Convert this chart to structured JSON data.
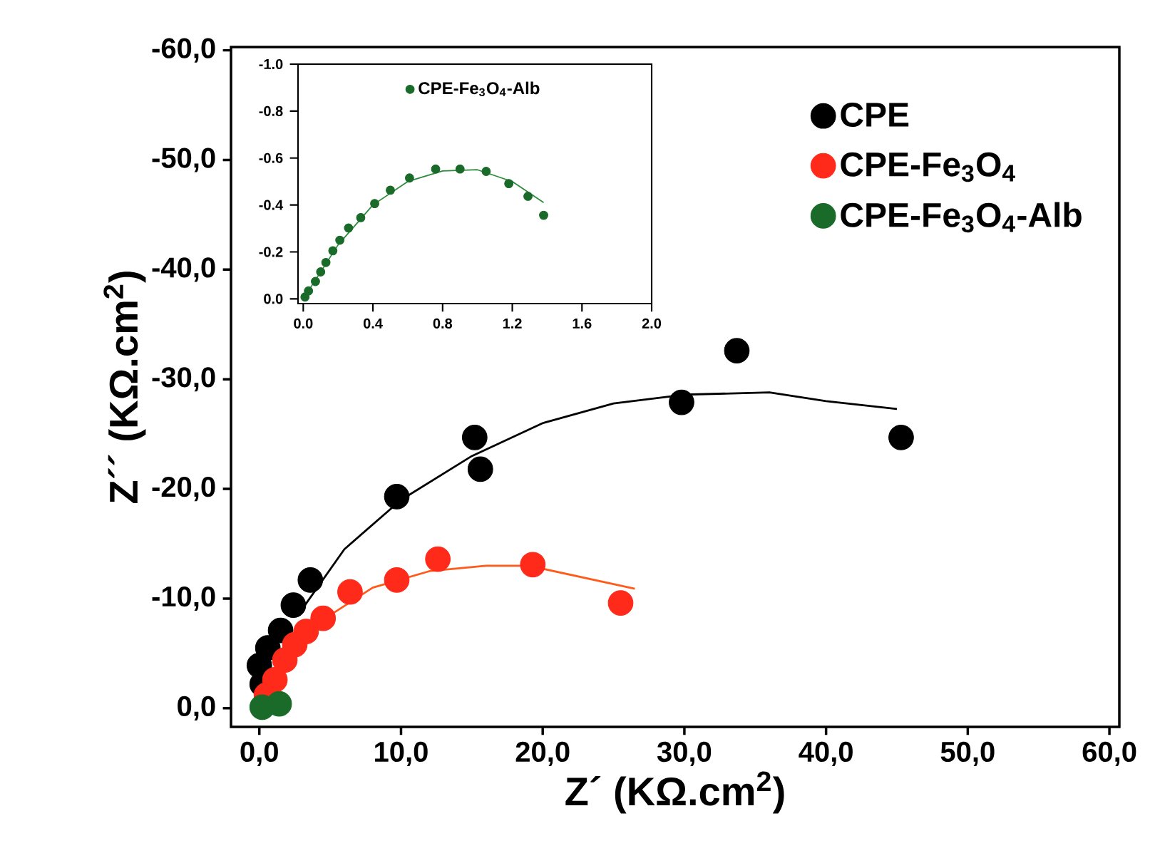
{
  "chart_data": [
    {
      "type": "scatter",
      "xlabel": "Z´ (KΩ.cm$^{2}$)",
      "ylabel": "Z´´ (KΩ.cm$^{2}$)",
      "legend": "top right",
      "xlim": [
        -2,
        60.7
      ],
      "ylim": [
        1.7,
        -60.3
      ],
      "xticks": [
        {
          "value": 0,
          "label": "0,0"
        },
        {
          "value": 10,
          "label": "10,0"
        },
        {
          "value": 20,
          "label": "20,0"
        },
        {
          "value": 30,
          "label": "30,0"
        },
        {
          "value": 40,
          "label": "40,0"
        },
        {
          "value": 50,
          "label": "50,0"
        },
        {
          "value": 60,
          "label": "60,0"
        }
      ],
      "yticks": [
        {
          "value": 0,
          "label": "0,0"
        },
        {
          "value": -10,
          "label": "-10,0"
        },
        {
          "value": -20,
          "label": "-20,0"
        },
        {
          "value": -30,
          "label": "-30,0"
        },
        {
          "value": -40,
          "label": "-40,0"
        },
        {
          "value": -50,
          "label": "-50,0"
        },
        {
          "value": -60,
          "label": "-60,0"
        }
      ],
      "series": [
        {
          "name": "CPE",
          "marker": "circle",
          "color": "#000000",
          "x": [
            0.2,
            0.0,
            0.6,
            1.5,
            2.4,
            3.6,
            9.7,
            15.2,
            15.6,
            29.8,
            33.7,
            45.3
          ],
          "values": [
            -2.2,
            -3.9,
            -5.5,
            -7.1,
            -9.4,
            -11.7,
            -19.3,
            -24.7,
            -21.8,
            -27.9,
            -32.6,
            -24.7
          ]
        },
        {
          "name": "CPE-Fe$_{3}$O$_{4}$",
          "marker": "circle",
          "color": "#ff2a1a",
          "x": [
            0.5,
            1.1,
            1.8,
            2.5,
            3.3,
            4.5,
            6.4,
            9.7,
            12.6,
            19.3,
            25.5
          ],
          "values": [
            -1.2,
            -2.6,
            -4.4,
            -5.8,
            -7.0,
            -8.2,
            -10.6,
            -11.7,
            -13.6,
            -13.1,
            -9.6
          ]
        },
        {
          "name": "CPE-Fe$_{3}$O$_{4}$-Alb",
          "marker": "circle",
          "color": "#1a6b2a",
          "x": [
            0.2,
            1.4
          ],
          "values": [
            -0.1,
            -0.4
          ]
        },
        {
          "type": "line",
          "marker": "none",
          "color": "#000000",
          "x": [
            3,
            6,
            10,
            15,
            20,
            25,
            30,
            33,
            36,
            40,
            45
          ],
          "values": [
            -9,
            -14.5,
            -19,
            -23,
            -26,
            -27.8,
            -28.6,
            -28.7,
            -28.8,
            -28,
            -27.3
          ]
        },
        {
          "type": "line",
          "marker": "none",
          "color": "#ff5a1a",
          "x": [
            2,
            5,
            8,
            12,
            16,
            19,
            26.5
          ],
          "values": [
            -5,
            -8.5,
            -11,
            -12.5,
            -13,
            -13,
            -10.9
          ]
        }
      ]
    },
    {
      "type": "scatter",
      "legend": "top",
      "xlim": [
        -0.03,
        2.0
      ],
      "ylim": [
        0.02,
        -1.0
      ],
      "xticks": [
        {
          "value": 0,
          "label": "0.0"
        },
        {
          "value": 0.4,
          "label": "0.4"
        },
        {
          "value": 0.8,
          "label": "0.8"
        },
        {
          "value": 1.2,
          "label": "1.2"
        },
        {
          "value": 1.6,
          "label": "1.6"
        },
        {
          "value": 2.0,
          "label": "2.0"
        }
      ],
      "yticks": [
        {
          "value": 0,
          "label": "0.0"
        },
        {
          "value": -0.2,
          "label": "-0.2"
        },
        {
          "value": -0.4,
          "label": "-0.4"
        },
        {
          "value": -0.6,
          "label": "-0.6"
        },
        {
          "value": -0.8,
          "label": "-0.8"
        },
        {
          "value": -1.0,
          "label": "-1.0"
        }
      ],
      "series": [
        {
          "name": "CPE-Fe$_{3}$O$_{4}$-Alb",
          "marker": "circle",
          "color": "#1a6b2a",
          "x": [
            0.01,
            0.03,
            0.07,
            0.1,
            0.13,
            0.17,
            0.21,
            0.26,
            0.33,
            0.41,
            0.5,
            0.61,
            0.76,
            0.9,
            1.05,
            1.18,
            1.29,
            1.38
          ],
          "values": [
            -0.008,
            -0.034,
            -0.074,
            -0.115,
            -0.155,
            -0.205,
            -0.25,
            -0.302,
            -0.346,
            -0.406,
            -0.463,
            -0.515,
            -0.553,
            -0.553,
            -0.543,
            -0.491,
            -0.437,
            -0.356
          ]
        },
        {
          "type": "line",
          "marker": "none",
          "color": "#2a8a3a",
          "x": [
            0,
            0.2,
            0.4,
            0.6,
            0.8,
            1.0,
            1.2,
            1.38
          ],
          "values": [
            0,
            -0.23,
            -0.4,
            -0.5,
            -0.545,
            -0.55,
            -0.5,
            -0.41
          ]
        }
      ]
    }
  ]
}
